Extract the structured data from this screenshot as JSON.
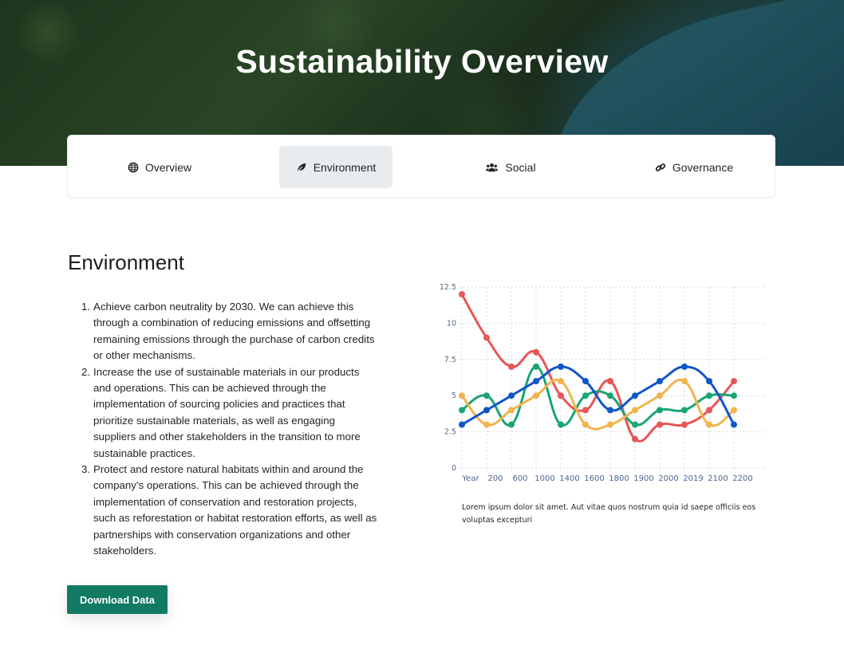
{
  "hero": {
    "title": "Sustainability Overview"
  },
  "tabs": [
    {
      "label": "Overview",
      "icon": "globe-icon",
      "active": false
    },
    {
      "label": "Environment",
      "icon": "leaf-icon",
      "active": true
    },
    {
      "label": "Social",
      "icon": "users-icon",
      "active": false
    },
    {
      "label": "Governance",
      "icon": "link-icon",
      "active": false
    }
  ],
  "section": {
    "title": "Environment",
    "items": [
      {
        "number": "1.",
        "text": "Achieve carbon neutrality by 2030. We can achieve this through a combination of reducing emissions and offsetting remaining emissions through the purchase of carbon credits or other mechanisms."
      },
      {
        "number": "2.",
        "text": "Increase the use of sustainable materials in our products and operations. This can be achieved through the implementation of sourcing policies and practices that prioritize sustainable materials, as well as engaging suppliers and other stakeholders in the transition to more sustainable practices."
      },
      {
        "number": "3.",
        "text": "Protect and restore natural habitats within and around the company's operations. This can be achieved through the implementation of conservation and restoration projects, such as reforestation or habitat restoration efforts, as well as partnerships with conservation organizations and other stakeholders."
      }
    ],
    "download_label": "Download Data"
  },
  "colors": {
    "accent": "#117a63",
    "red": "#e85656",
    "green": "#1aa571",
    "blue": "#0f56c8",
    "yellow": "#f1b44c"
  },
  "chart_data": {
    "type": "line",
    "categories": [
      "Year",
      "200",
      "600",
      "1000",
      "1400",
      "1600",
      "1800",
      "1900",
      "2000",
      "2019",
      "2100",
      "2200"
    ],
    "ylim": [
      0,
      12.5
    ],
    "yticks": [
      "0",
      "2.5",
      "5",
      "7.5",
      "10",
      "12.5"
    ],
    "grid": true,
    "series": [
      {
        "color": "#e85656",
        "values": [
          12,
          9,
          7,
          8,
          5,
          4,
          6,
          2,
          3,
          3,
          4,
          6
        ]
      },
      {
        "color": "#1aa571",
        "values": [
          4,
          5,
          3,
          7,
          3,
          5,
          5,
          3,
          4,
          4,
          5,
          5
        ]
      },
      {
        "color": "#f1b44c",
        "values": [
          5,
          3,
          4,
          5,
          6,
          3,
          3,
          4,
          5,
          6,
          3,
          4
        ]
      },
      {
        "color": "#0f56c8",
        "values": [
          3,
          4,
          5,
          6,
          7,
          6,
          4,
          5,
          6,
          7,
          6,
          3
        ]
      }
    ],
    "caption": "Lorem ipsum dolor sit amet. Aut vitae quos nostrum quia id saepe officiis eos voluptas excepturi"
  }
}
